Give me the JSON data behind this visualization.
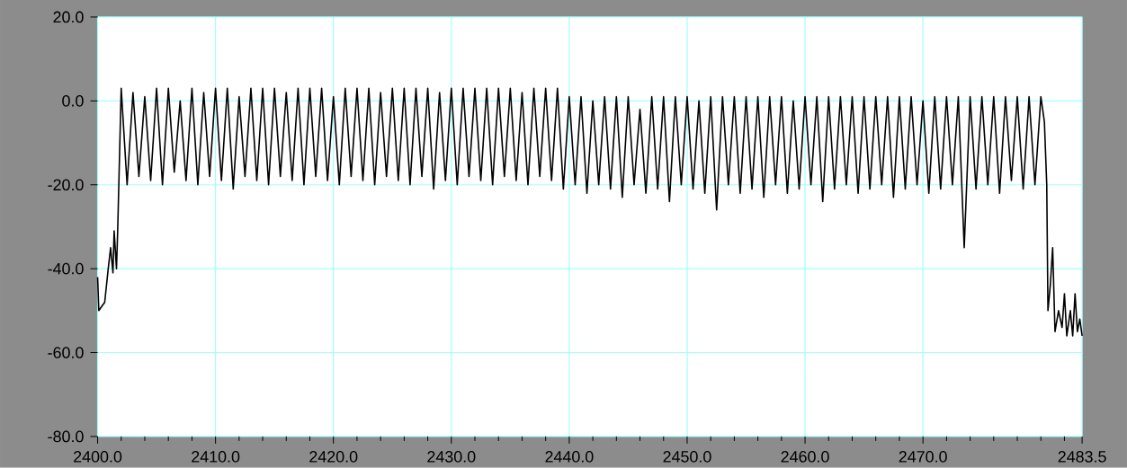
{
  "chart_data": {
    "type": "line",
    "x": [
      2400.0,
      2400.1,
      2400.6,
      2400.9,
      2401.1,
      2401.3,
      2401.4,
      2401.6,
      2401.7,
      2402,
      2402.5,
      2403,
      2403.5,
      2404,
      2404.5,
      2405,
      2405.5,
      2406,
      2406.5,
      2407,
      2407.5,
      2408,
      2408.5,
      2409,
      2409.5,
      2410,
      2410.5,
      2411,
      2411.5,
      2412,
      2412.5,
      2413,
      2413.5,
      2414,
      2414.5,
      2415,
      2415.5,
      2416,
      2416.5,
      2417,
      2417.5,
      2418,
      2418.5,
      2419,
      2419.5,
      2420,
      2420.5,
      2421,
      2421.5,
      2422,
      2422.5,
      2423,
      2423.5,
      2424,
      2424.5,
      2425,
      2425.5,
      2426,
      2426.5,
      2427,
      2427.5,
      2428,
      2428.5,
      2429,
      2429.5,
      2430,
      2430.5,
      2431,
      2431.5,
      2432,
      2432.5,
      2433,
      2433.5,
      2434,
      2434.5,
      2435,
      2435.5,
      2436,
      2436.5,
      2437,
      2437.5,
      2438,
      2438.5,
      2439,
      2439.5,
      2440,
      2440.5,
      2441,
      2441.5,
      2442,
      2442.5,
      2443,
      2443.5,
      2444,
      2444.5,
      2445,
      2445.5,
      2446,
      2446.5,
      2447,
      2447.5,
      2448,
      2448.5,
      2449,
      2449.5,
      2450,
      2450.5,
      2451,
      2451.5,
      2452,
      2452.5,
      2453,
      2453.5,
      2454,
      2454.5,
      2455,
      2455.5,
      2456,
      2456.5,
      2457,
      2457.5,
      2458,
      2458.5,
      2459,
      2459.5,
      2460,
      2460.5,
      2461,
      2461.5,
      2462,
      2462.5,
      2463,
      2463.5,
      2464,
      2464.5,
      2465,
      2465.5,
      2466,
      2466.5,
      2467,
      2467.5,
      2468,
      2468.5,
      2469,
      2469.5,
      2470,
      2470.5,
      2471,
      2471.5,
      2472,
      2472.5,
      2473,
      2473.5,
      2474,
      2474.5,
      2475,
      2475.5,
      2476,
      2476.5,
      2477,
      2477.5,
      2478,
      2478.5,
      2479,
      2479.5,
      2480,
      2480.3,
      2480.5,
      2480.6,
      2480.8,
      2481.0,
      2481.2,
      2481.5,
      2481.8,
      2482.0,
      2482.2,
      2482.5,
      2482.7,
      2482.9,
      2483.1,
      2483.3,
      2483.5
    ],
    "series": [
      {
        "color": "#000000",
        "values": [
          -42,
          -50,
          -48,
          -40,
          -35,
          -41,
          -31,
          -40,
          -31,
          3,
          -20,
          2,
          -18,
          1,
          -19,
          3,
          -20,
          3,
          -17,
          0,
          -19,
          3,
          -20,
          2,
          -18,
          3,
          -19,
          3,
          -21,
          1,
          -18,
          3,
          -19,
          3,
          -20,
          3,
          -18,
          2,
          -19,
          3,
          -20,
          3,
          -18,
          3,
          -19,
          1,
          -20,
          3,
          -18,
          3,
          -19,
          3,
          -20,
          2,
          -18,
          3,
          -19,
          3,
          -20,
          3,
          -18,
          3,
          -21,
          2,
          -19,
          3,
          -20,
          3,
          -18,
          3,
          -19,
          3,
          -20,
          3,
          -18,
          3,
          -19,
          2,
          -20,
          3,
          -18,
          3,
          -19,
          3,
          -21,
          1,
          -20,
          1,
          -22,
          0,
          -20,
          1,
          -21,
          1,
          -23,
          1,
          -20,
          -2,
          -22,
          1,
          -21,
          1,
          -24,
          1,
          -20,
          1,
          -21,
          0,
          -22,
          1,
          -26,
          1,
          -20,
          1,
          -22,
          1,
          -21,
          1,
          -23,
          1,
          -20,
          1,
          -22,
          0,
          -21,
          1,
          -20,
          1,
          -24,
          1,
          -21,
          1,
          -20,
          1,
          -22,
          1,
          -21,
          1,
          -20,
          1,
          -23,
          1,
          -21,
          1,
          -20,
          0,
          -22,
          1,
          -21,
          1,
          -20,
          1,
          -35,
          1,
          -21,
          1,
          -20,
          1,
          -22,
          1,
          -19,
          1,
          -21,
          1,
          -20,
          1,
          -5,
          -20,
          -50,
          -44,
          -35,
          -55,
          -50,
          -54,
          -46,
          -56,
          -50,
          -56,
          -46,
          -55,
          -52,
          -56
        ]
      }
    ],
    "xlim": [
      2400,
      2483.5
    ],
    "ylim": [
      -80,
      20
    ],
    "xticks": [
      {
        "value": 2400,
        "label": "2400.0"
      },
      {
        "value": 2402,
        "label": null
      },
      {
        "value": 2404,
        "label": null
      },
      {
        "value": 2406,
        "label": null
      },
      {
        "value": 2408,
        "label": null
      },
      {
        "value": 2410,
        "label": "2410.0"
      },
      {
        "value": 2412,
        "label": null
      },
      {
        "value": 2414,
        "label": null
      },
      {
        "value": 2416,
        "label": null
      },
      {
        "value": 2418,
        "label": null
      },
      {
        "value": 2420,
        "label": "2420.0"
      },
      {
        "value": 2422,
        "label": null
      },
      {
        "value": 2424,
        "label": null
      },
      {
        "value": 2426,
        "label": null
      },
      {
        "value": 2428,
        "label": null
      },
      {
        "value": 2430,
        "label": "2430.0"
      },
      {
        "value": 2432,
        "label": null
      },
      {
        "value": 2434,
        "label": null
      },
      {
        "value": 2436,
        "label": null
      },
      {
        "value": 2438,
        "label": null
      },
      {
        "value": 2440,
        "label": "2440.0"
      },
      {
        "value": 2442,
        "label": null
      },
      {
        "value": 2444,
        "label": null
      },
      {
        "value": 2446,
        "label": null
      },
      {
        "value": 2448,
        "label": null
      },
      {
        "value": 2450,
        "label": "2450.0"
      },
      {
        "value": 2452,
        "label": null
      },
      {
        "value": 2454,
        "label": null
      },
      {
        "value": 2456,
        "label": null
      },
      {
        "value": 2458,
        "label": null
      },
      {
        "value": 2460,
        "label": "2460.0"
      },
      {
        "value": 2462,
        "label": null
      },
      {
        "value": 2464,
        "label": null
      },
      {
        "value": 2466,
        "label": null
      },
      {
        "value": 2468,
        "label": null
      },
      {
        "value": 2470,
        "label": "2470.0"
      },
      {
        "value": 2472,
        "label": null
      },
      {
        "value": 2474,
        "label": null
      },
      {
        "value": 2476,
        "label": null
      },
      {
        "value": 2478,
        "label": null
      },
      {
        "value": 2480,
        "label": null
      },
      {
        "value": 2482,
        "label": null
      },
      {
        "value": 2483.5,
        "label": "2483.5"
      }
    ],
    "yticks": [
      {
        "value": -80,
        "label": "-80.0"
      },
      {
        "value": -60,
        "label": "-60.0"
      },
      {
        "value": -40,
        "label": "-40.0"
      },
      {
        "value": -20,
        "label": "-20.0"
      },
      {
        "value": 0,
        "label": "0.0"
      },
      {
        "value": 20,
        "label": "20.0"
      }
    ],
    "grid": true,
    "marker": "none",
    "line_style": "solid"
  }
}
